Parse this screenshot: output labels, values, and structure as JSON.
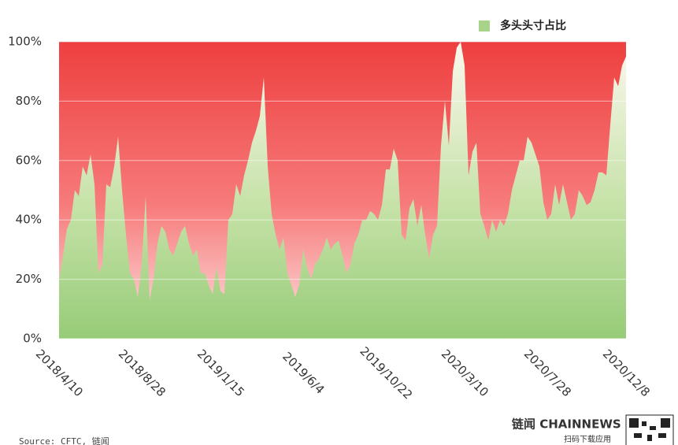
{
  "chart_data": {
    "type": "area",
    "categories": [
      "2018/4/10",
      null,
      null,
      null,
      null,
      null,
      null,
      null,
      null,
      null,
      null,
      null,
      null,
      null,
      null,
      null,
      null,
      null,
      null,
      null,
      null,
      "2018/8/28",
      null,
      null,
      null,
      null,
      null,
      null,
      null,
      null,
      null,
      null,
      null,
      null,
      null,
      null,
      null,
      null,
      null,
      null,
      null,
      "2019/1/15",
      null,
      null,
      null,
      null,
      null,
      null,
      null,
      null,
      null,
      null,
      null,
      null,
      null,
      null,
      null,
      null,
      null,
      null,
      null,
      null,
      "2019/6/4",
      null,
      null,
      null,
      null,
      null,
      null,
      null,
      null,
      null,
      null,
      null,
      null,
      null,
      null,
      null,
      null,
      null,
      null,
      null,
      null,
      "2019/10/22",
      null,
      null,
      null,
      null,
      null,
      null,
      null,
      null,
      null,
      null,
      null,
      null,
      null,
      null,
      null,
      null,
      null,
      null,
      null,
      "2020/3/10",
      null,
      null,
      null,
      null,
      null,
      null,
      null,
      null,
      null,
      null,
      null,
      null,
      null,
      null,
      null,
      null,
      null,
      null,
      null,
      null,
      "2020/7/28",
      null,
      null,
      null,
      null,
      null,
      null,
      null,
      null,
      null,
      null,
      null,
      null,
      null,
      null,
      null,
      null,
      null,
      null,
      null,
      "2020/12/8"
    ],
    "series": [
      {
        "name": "多头头寸占比",
        "color": "#a8d48a",
        "values": [
          20,
          28,
          37,
          40,
          50,
          48,
          58,
          55,
          62,
          52,
          22,
          25,
          52,
          51,
          58,
          68,
          50,
          35,
          22,
          20,
          14,
          25,
          48,
          13,
          20,
          32,
          38,
          36,
          30,
          28,
          32,
          36,
          38,
          32,
          28,
          30,
          22,
          22,
          18,
          15,
          24,
          16,
          15,
          40,
          42,
          52,
          48,
          55,
          60,
          66,
          70,
          75,
          88,
          58,
          42,
          35,
          30,
          34,
          22,
          18,
          14,
          18,
          30,
          24,
          20,
          25,
          27,
          30,
          34,
          30,
          32,
          33,
          28,
          22,
          25,
          32,
          35,
          40,
          40,
          43,
          42,
          40,
          45,
          57,
          57,
          64,
          60,
          35,
          33,
          44,
          47,
          38,
          45,
          35,
          27,
          35,
          38,
          65,
          80,
          65,
          90,
          98,
          100,
          92,
          55,
          63,
          66,
          42,
          38,
          33,
          40,
          36,
          40,
          38,
          42,
          50,
          55,
          60,
          60,
          68,
          66,
          62,
          58,
          46,
          40,
          42,
          52,
          45,
          52,
          46,
          40,
          42,
          50,
          48,
          45,
          46,
          50,
          56,
          56,
          55,
          72,
          88,
          85,
          92,
          95
        ]
      }
    ],
    "ylim": [
      0,
      100
    ],
    "yticks": [
      {
        "value": 0,
        "label": "0%"
      },
      {
        "value": 20,
        "label": "20%"
      },
      {
        "value": 40,
        "label": "40%"
      },
      {
        "value": 60,
        "label": "60%"
      },
      {
        "value": 80,
        "label": "80%"
      },
      {
        "value": 100,
        "label": "100%"
      }
    ],
    "grid": true,
    "legend": "top-right",
    "background_color": "#ef4444",
    "source": "Source: CFTC, 链闻",
    "brand": "链闻 CHAINNEWS",
    "brand_subtitle": "扫码下载应用"
  }
}
